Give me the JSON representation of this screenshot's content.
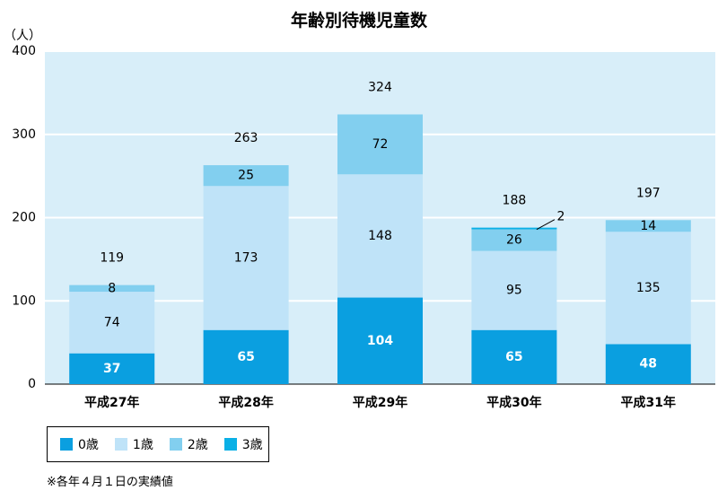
{
  "chart_data": {
    "type": "bar",
    "stacked": true,
    "title": "年齢別待機児童数",
    "yunit": "（人）",
    "ylim": [
      0,
      400
    ],
    "yticks": [
      "0",
      "100",
      "200",
      "300",
      "400"
    ],
    "categories": [
      "平成27年",
      "平成28年",
      "平成29年",
      "平成30年",
      "平成31年"
    ],
    "series": [
      {
        "name": "0歳",
        "values": [
          37,
          65,
          104,
          65,
          48
        ],
        "color": "#0a9fe0"
      },
      {
        "name": "1歳",
        "values": [
          74,
          173,
          148,
          95,
          135
        ],
        "color": "#bfe3f8"
      },
      {
        "name": "2歳",
        "values": [
          8,
          25,
          72,
          26,
          14
        ],
        "color": "#82cfef"
      },
      {
        "name": "3歳",
        "values": [
          0,
          0,
          0,
          2,
          0
        ],
        "color": "#0ab0e6"
      }
    ],
    "totals": [
      119,
      263,
      324,
      188,
      197
    ],
    "segment_labels": [
      [
        "37",
        "74",
        "8",
        ""
      ],
      [
        "65",
        "173",
        "25",
        ""
      ],
      [
        "104",
        "148",
        "72",
        ""
      ],
      [
        "65",
        "95",
        "26",
        "2"
      ],
      [
        "48",
        "135",
        "14",
        ""
      ]
    ],
    "plot_background": "#d8eef9",
    "grid": true
  },
  "legend": [
    {
      "label": "0歳",
      "color": "#0a9fe0"
    },
    {
      "label": "1歳",
      "color": "#bfe3f8"
    },
    {
      "label": "2歳",
      "color": "#82cfef"
    },
    {
      "label": "3歳",
      "color": "#0ab0e6"
    }
  ],
  "footnote": "※各年４月１日の実績値"
}
